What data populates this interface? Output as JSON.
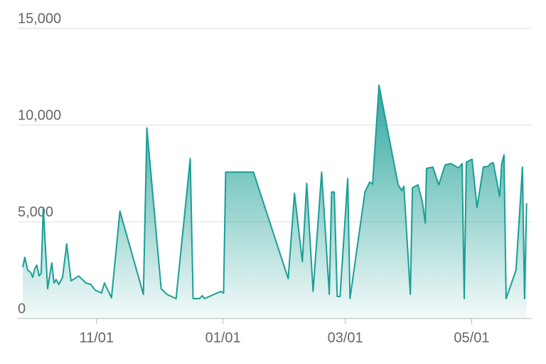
{
  "chart_data": {
    "type": "area",
    "color": "#1a9e95",
    "grid": true,
    "x": [
      -35.6,
      -34.6,
      -33.2,
      -31.8,
      -30.8,
      -29.8,
      -28.8,
      -27.7,
      -26.7,
      -25.7,
      -23.6,
      -21.6,
      -20.5,
      -19.5,
      -18.2,
      -16.4,
      -14.4,
      -12.3,
      -8.6,
      -5.1,
      -2.7,
      -0.7,
      2.4,
      3.8,
      7.2,
      11.3,
      22.6,
      24.3,
      31.2,
      33.9,
      38.4,
      45.2,
      46.6,
      49.7,
      51.0,
      52.1,
      59.9,
      61.3,
      62.3,
      75.7,
      92.5,
      95.5,
      99.3,
      101.4,
      104.5,
      108.6,
      112.3,
      113.4,
      114.7,
      116.1,
      117.5,
      121.2,
      122.3,
      129.5,
      131.8,
      133.2,
      136.3,
      145.5,
      147.3,
      148.3,
      151.4,
      152.4,
      155.1,
      157.2,
      158.6,
      159.2,
      162.3,
      165.1,
      168.2,
      170.9,
      174.7,
      176.4,
      177.4,
      178.4,
      181.2,
      183.6,
      186.6,
      189.0,
      190.1,
      191.4,
      194.5,
      195.5,
      196.6,
      197.6,
      202.4,
      205.5,
      206.5,
      207.5
    ],
    "values": [
      2650,
      3160,
      2500,
      2390,
      2130,
      2570,
      2760,
      2200,
      2350,
      5740,
      1540,
      2870,
      1840,
      2020,
      1760,
      2130,
      3860,
      1950,
      2200,
      1840,
      1760,
      1470,
      1320,
      1840,
      1070,
      5550,
      1250,
      9850,
      1540,
      1250,
      1030,
      8270,
      1030,
      1030,
      1180,
      1030,
      1400,
      1320,
      7570,
      7570,
      2060,
      6470,
      2940,
      6990,
      1400,
      7570,
      1250,
      6540,
      6540,
      1140,
      1140,
      7240,
      1030,
      6540,
      7060,
      6950,
      12060,
      6910,
      6620,
      6840,
      1250,
      6760,
      6910,
      6030,
      4930,
      7760,
      7830,
      6910,
      7940,
      8010,
      7790,
      8010,
      1030,
      8090,
      8240,
      5740,
      7830,
      7870,
      8010,
      8050,
      6320,
      8010,
      8460,
      1030,
      2500,
      7830,
      1030,
      5960
    ],
    "xlim": [
      -38,
      210
    ],
    "xticks": [
      {
        "value": 0,
        "label": "11/01"
      },
      {
        "value": 61,
        "label": "01/01"
      },
      {
        "value": 120,
        "label": "03/01"
      },
      {
        "value": 181,
        "label": "05/01"
      }
    ],
    "ylim": [
      0,
      15000
    ],
    "yticks": [
      0,
      {
        "value": 5000,
        "label": "5,000"
      },
      {
        "value": 10000,
        "label": "10,000"
      },
      {
        "value": 15000,
        "label": "15,000"
      }
    ]
  }
}
